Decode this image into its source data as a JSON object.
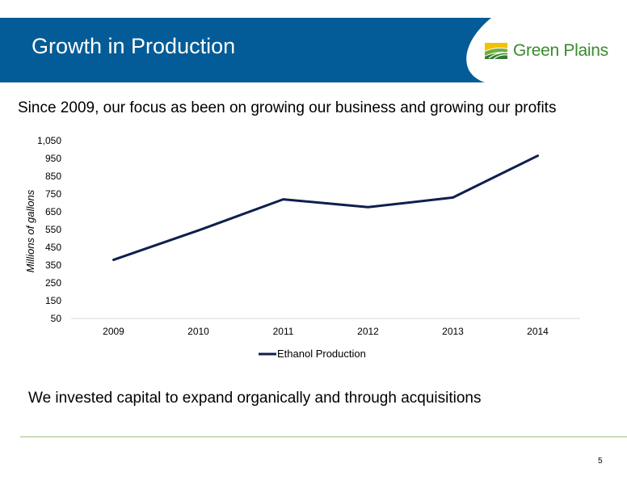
{
  "slide": {
    "title": "Growth in Production",
    "subtitle": "Since 2009, our focus as been on growing our business and growing our profits",
    "footer_text": "We invested capital to expand organically and through acquisitions",
    "page_number": "5"
  },
  "logo": {
    "text": "Green Plains",
    "icon": "green-plains-logo-icon",
    "colors": {
      "green": "#3a8a2e",
      "yellow": "#f2c200"
    }
  },
  "colors": {
    "banner": "#035c97",
    "line": "#0f1f4d",
    "rule": "#9cbf7a"
  },
  "chart_data": {
    "type": "line",
    "title": "",
    "xlabel": "",
    "ylabel": "Millions of gallons",
    "categories": [
      "2009",
      "2010",
      "2011",
      "2012",
      "2013",
      "2014"
    ],
    "series": [
      {
        "name": "Ethanol Production",
        "values": [
          380,
          545,
          720,
          676,
          730,
          965
        ]
      }
    ],
    "ylim": [
      50,
      1050
    ],
    "yticks": [
      50,
      150,
      250,
      350,
      450,
      550,
      650,
      750,
      850,
      950,
      1050
    ],
    "ytick_labels": [
      "50",
      "150",
      "250",
      "350",
      "450",
      "550",
      "650",
      "750",
      "850",
      "950",
      "1,050"
    ],
    "grid": false,
    "legend": "bottom"
  }
}
